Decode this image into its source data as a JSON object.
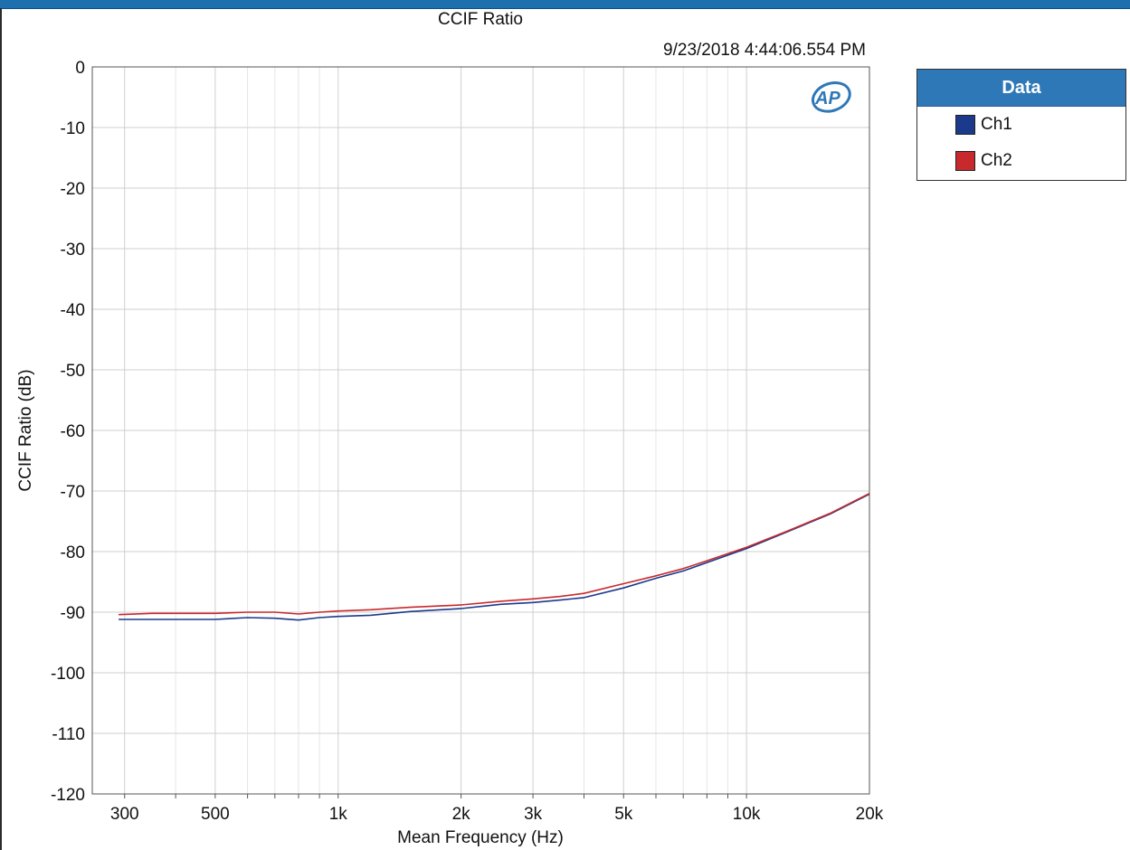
{
  "chart_data": {
    "type": "line",
    "title": "CCIF Ratio",
    "timestamp": "9/23/2018 4:44:06.554 PM",
    "xlabel": "Mean Frequency (Hz)",
    "ylabel": "CCIF Ratio (dB)",
    "x_scale": "log",
    "xlim": [
      250,
      20000
    ],
    "ylim": [
      -120,
      0
    ],
    "grid": true,
    "x_ticks": [
      {
        "value": 300,
        "label": "300"
      },
      {
        "value": 500,
        "label": "500"
      },
      {
        "value": 1000,
        "label": "1k"
      },
      {
        "value": 2000,
        "label": "2k"
      },
      {
        "value": 3000,
        "label": "3k"
      },
      {
        "value": 5000,
        "label": "5k"
      },
      {
        "value": 10000,
        "label": "10k"
      },
      {
        "value": 20000,
        "label": "20k"
      }
    ],
    "y_ticks": [
      0,
      -10,
      -20,
      -30,
      -40,
      -50,
      -60,
      -70,
      -80,
      -90,
      -100,
      -110,
      -120
    ],
    "series": [
      {
        "name": "Ch1",
        "color": "#1b3a8c",
        "x": [
          290,
          350,
          420,
          500,
          600,
          700,
          800,
          900,
          1000,
          1200,
          1500,
          2000,
          2500,
          3000,
          3500,
          4000,
          5000,
          6000,
          7000,
          8000,
          10000,
          12500,
          16000,
          20000
        ],
        "y": [
          -91.2,
          -91.2,
          -91.2,
          -91.2,
          -90.9,
          -91.0,
          -91.3,
          -90.9,
          -90.7,
          -90.5,
          -89.9,
          -89.4,
          -88.7,
          -88.4,
          -88.0,
          -87.6,
          -86.0,
          -84.4,
          -83.2,
          -81.8,
          -79.5,
          -76.8,
          -73.8,
          -70.5
        ]
      },
      {
        "name": "Ch2",
        "color": "#c8292d",
        "x": [
          290,
          350,
          420,
          500,
          600,
          700,
          800,
          900,
          1000,
          1200,
          1500,
          2000,
          2500,
          3000,
          3500,
          4000,
          5000,
          6000,
          7000,
          8000,
          10000,
          12500,
          16000,
          20000
        ],
        "y": [
          -90.4,
          -90.2,
          -90.2,
          -90.2,
          -90.0,
          -90.0,
          -90.3,
          -90.0,
          -89.8,
          -89.6,
          -89.2,
          -88.8,
          -88.2,
          -87.8,
          -87.4,
          -86.9,
          -85.3,
          -84.0,
          -82.8,
          -81.5,
          -79.3,
          -76.7,
          -73.7,
          -70.4
        ]
      }
    ]
  },
  "legend": {
    "title": "Data",
    "items": [
      {
        "label": "Ch1",
        "color": "#1b3a8c"
      },
      {
        "label": "Ch2",
        "color": "#c8292d"
      }
    ]
  },
  "logo": {
    "text": "AP"
  }
}
